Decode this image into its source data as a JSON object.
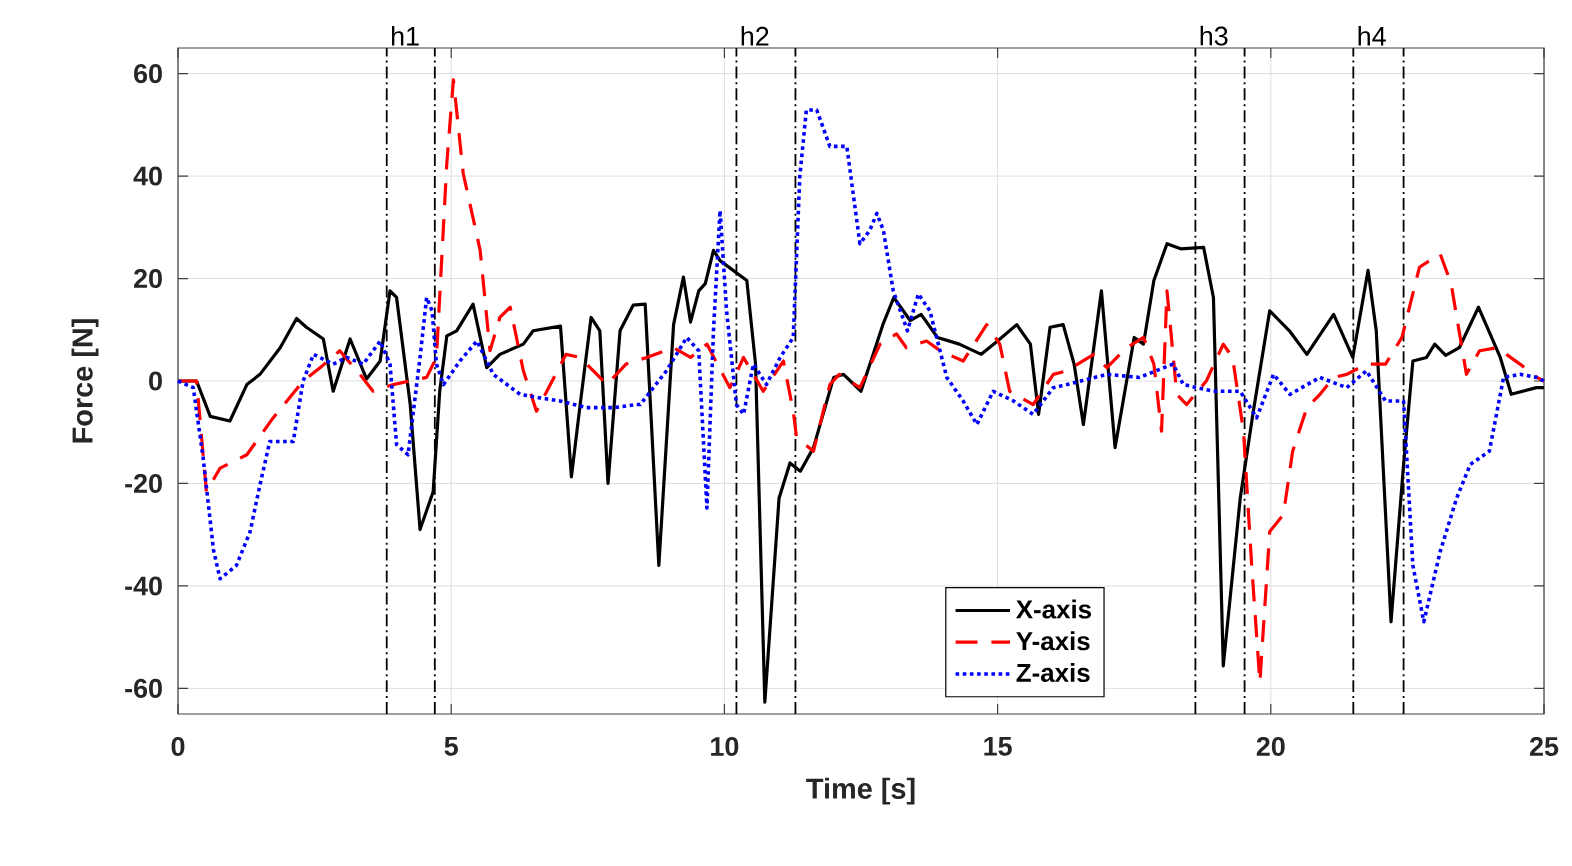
{
  "chart_data": {
    "type": "line",
    "xlabel": "Time [s]",
    "ylabel": "Force [N]",
    "xlim": [
      0,
      25
    ],
    "ylim": [
      -65,
      65
    ],
    "xticks": [
      0,
      5,
      10,
      15,
      20,
      25
    ],
    "yticks": [
      -60,
      -40,
      -20,
      0,
      20,
      40,
      60
    ],
    "grid": true,
    "legend": "bottom",
    "ref_lines": [
      {
        "axis": "x",
        "value": 3.82,
        "label": "h1"
      },
      {
        "axis": "x",
        "value": 4.7
      },
      {
        "axis": "x",
        "value": 10.22,
        "label": "h2"
      },
      {
        "axis": "x",
        "value": 11.3
      },
      {
        "axis": "x",
        "value": 18.62,
        "label": "h3"
      },
      {
        "axis": "x",
        "value": 19.52
      },
      {
        "axis": "x",
        "value": 21.51,
        "label": "h4"
      },
      {
        "axis": "x",
        "value": 22.43
      }
    ],
    "series": [
      {
        "name": "X-axis",
        "color": "#000000",
        "line_style": "solid",
        "x": [
          0,
          0.34,
          0.59,
          0.95,
          1.26,
          1.5,
          1.87,
          2.17,
          2.35,
          2.66,
          2.84,
          3.15,
          3.45,
          3.7,
          3.88,
          4.0,
          4.25,
          4.43,
          4.67,
          4.79,
          4.92,
          5.1,
          5.4,
          5.65,
          5.89,
          6.32,
          6.5,
          7.0,
          7.2,
          7.36,
          7.56,
          7.72,
          7.87,
          8.09,
          8.33,
          8.55,
          8.8,
          9.07,
          9.25,
          9.38,
          9.53,
          9.65,
          9.8,
          9.92,
          10.41,
          10.57,
          10.74,
          11.0,
          11.2,
          11.39,
          11.63,
          12.0,
          12.18,
          12.5,
          12.9,
          13.1,
          13.4,
          13.6,
          13.9,
          14.3,
          14.7,
          15.0,
          15.35,
          15.6,
          15.75,
          15.96,
          16.2,
          16.4,
          16.57,
          16.9,
          17.15,
          17.5,
          17.67,
          17.86,
          18.1,
          18.35,
          18.77,
          18.95,
          19.13,
          19.44,
          19.68,
          19.98,
          20.34,
          20.66,
          21.15,
          21.5,
          21.78,
          21.93,
          22.2,
          22.43,
          22.6,
          22.85,
          23.0,
          23.2,
          23.45,
          23.8,
          24.2,
          24.4,
          24.86,
          25
        ],
        "values": [
          0,
          0,
          -6.9,
          -7.8,
          -0.7,
          1.3,
          6.5,
          12.2,
          10.5,
          8.2,
          -2,
          8.2,
          0.4,
          3.9,
          17.6,
          16.3,
          -4.6,
          -29,
          -21.6,
          -2,
          8.8,
          9.8,
          15,
          2.6,
          5.2,
          7.2,
          9.8,
          10.7,
          -18.7,
          -4.6,
          12.4,
          9.8,
          -20,
          9.8,
          14.8,
          15,
          -36,
          11,
          20.3,
          11.5,
          17.6,
          19,
          25.5,
          23.5,
          19.6,
          3.3,
          -62.7,
          -22.9,
          -16,
          -17.6,
          -13,
          0.7,
          1.3,
          -2,
          11,
          16.3,
          11.8,
          13,
          8.5,
          7.2,
          5.2,
          7.8,
          11,
          7.2,
          -6.5,
          10.5,
          11,
          3.3,
          -8.5,
          17.6,
          -13,
          8.5,
          7.2,
          19.6,
          26.8,
          25.8,
          26.1,
          16.3,
          -55.6,
          -22.9,
          -5.9,
          13.7,
          9.8,
          5.2,
          13,
          4.6,
          21.6,
          9.8,
          -47,
          -16.3,
          3.9,
          4.6,
          7.2,
          5,
          6.5,
          14.4,
          4.6,
          -2.6,
          -1.3,
          -1.3
        ]
      },
      {
        "name": "Y-axis",
        "color": "#ff0000",
        "line_style": "dashed",
        "x": [
          0,
          0.34,
          0.52,
          0.77,
          1.26,
          1.74,
          2.29,
          2.6,
          2.96,
          3.33,
          3.57,
          3.94,
          4.55,
          4.73,
          4.92,
          5.04,
          5.22,
          5.53,
          5.71,
          5.89,
          6.08,
          6.32,
          6.56,
          6.75,
          7.1,
          7.36,
          7.85,
          8.2,
          8.58,
          9.07,
          9.38,
          9.68,
          10.1,
          10.35,
          10.71,
          11.08,
          11.26,
          11.32,
          11.63,
          11.93,
          12.1,
          12.48,
          12.85,
          13.15,
          13.33,
          13.7,
          13.95,
          14.37,
          14.8,
          15.04,
          15.22,
          15.65,
          16.02,
          16.27,
          16.76,
          17.0,
          17.36,
          17.67,
          17.86,
          18.0,
          18.1,
          18.28,
          18.46,
          18.82,
          19.13,
          19.3,
          19.5,
          19.65,
          19.8,
          19.98,
          20.23,
          20.4,
          20.66,
          20.9,
          21.15,
          21.39,
          21.75,
          22.1,
          22.4,
          22.72,
          23.1,
          23.3,
          23.58,
          23.82,
          24.14,
          24.56,
          24.87,
          25
        ],
        "values": [
          0,
          0,
          -21.6,
          -17,
          -14.4,
          -7.2,
          0,
          2.6,
          5.9,
          1.3,
          -2,
          -0.7,
          0.7,
          4.6,
          42.5,
          58.8,
          40.5,
          25.5,
          5.9,
          12.4,
          14.4,
          2,
          -5.9,
          -2,
          5.2,
          4.6,
          -0.7,
          3.3,
          4.6,
          6.5,
          4.6,
          7.2,
          -1.3,
          4.6,
          -2,
          3.9,
          -5.9,
          -11,
          -13.7,
          -0.7,
          1.3,
          -1.3,
          7.2,
          9.2,
          6.5,
          7.8,
          5.9,
          3.9,
          11,
          7.2,
          -2,
          -4.6,
          1.3,
          2,
          5.2,
          2.6,
          6.5,
          8.5,
          3.3,
          -9.8,
          17.6,
          -2.6,
          -4.6,
          0,
          7.2,
          4.6,
          -9.8,
          -36,
          -58.8,
          -29.4,
          -26.1,
          -13.7,
          -5.2,
          -2.6,
          0.7,
          1.3,
          3.3,
          3.3,
          8.5,
          22.2,
          24.8,
          19,
          1.3,
          5.9,
          6.5,
          3.3,
          0.7,
          0
        ]
      },
      {
        "name": "Z-axis",
        "color": "#0000ff",
        "line_style": "dotted",
        "x": [
          0,
          0.28,
          0.46,
          0.65,
          0.77,
          1.07,
          1.32,
          1.5,
          1.68,
          2.11,
          2.29,
          2.48,
          2.84,
          3.09,
          3.39,
          3.7,
          3.88,
          4.0,
          4.21,
          4.43,
          4.55,
          4.65,
          4.73,
          4.86,
          5.16,
          5.47,
          5.77,
          6.26,
          6.63,
          6.99,
          7.48,
          7.97,
          8.39,
          8.46,
          8.94,
          9.31,
          9.53,
          9.68,
          9.8,
          9.92,
          10.04,
          10.22,
          10.35,
          10.53,
          10.77,
          11.02,
          11.26,
          11.38,
          11.5,
          11.69,
          11.93,
          12.24,
          12.48,
          12.66,
          12.79,
          12.91,
          13.09,
          13.35,
          13.55,
          13.76,
          14.07,
          14.37,
          14.62,
          14.92,
          15.29,
          15.65,
          16.02,
          16.27,
          17.0,
          17.6,
          18.21,
          18.4,
          18.95,
          19.44,
          19.74,
          20.05,
          20.35,
          20.9,
          21.39,
          21.75,
          22.1,
          22.43,
          22.6,
          22.8,
          23.1,
          23.4,
          23.65,
          24.0,
          24.26,
          24.56,
          24.87,
          25
        ],
        "values": [
          0,
          -1.3,
          -15,
          -33,
          -38.6,
          -36,
          -29.4,
          -20.3,
          -11.8,
          -11.8,
          0,
          5.2,
          3.3,
          4.6,
          3.3,
          7.8,
          3.3,
          -12.4,
          -14.4,
          4.6,
          16.3,
          13.7,
          3.3,
          -0.7,
          3.9,
          7.8,
          1.3,
          -2.6,
          -3.3,
          -3.9,
          -5.2,
          -5.2,
          -4.6,
          -4.6,
          2,
          8.5,
          5.9,
          -24.8,
          9.8,
          33.3,
          13.7,
          -4.6,
          -6.5,
          3.3,
          -0.7,
          4.6,
          8.5,
          39.9,
          52.9,
          52.9,
          45.8,
          45.8,
          26.8,
          29.4,
          32.7,
          29.4,
          17.6,
          9.8,
          17,
          13.7,
          0.7,
          -3.9,
          -8.5,
          -2,
          -3.9,
          -6.5,
          -1.3,
          -0.7,
          1.3,
          0.7,
          3.3,
          -0.7,
          -2,
          -2,
          -7.2,
          1.3,
          -2.6,
          0.7,
          -1.3,
          2,
          -3.9,
          -3.9,
          -36,
          -47,
          -33.3,
          -22.9,
          -16.3,
          -13.7,
          0.7,
          1.3,
          0.7,
          0
        ]
      }
    ]
  }
}
